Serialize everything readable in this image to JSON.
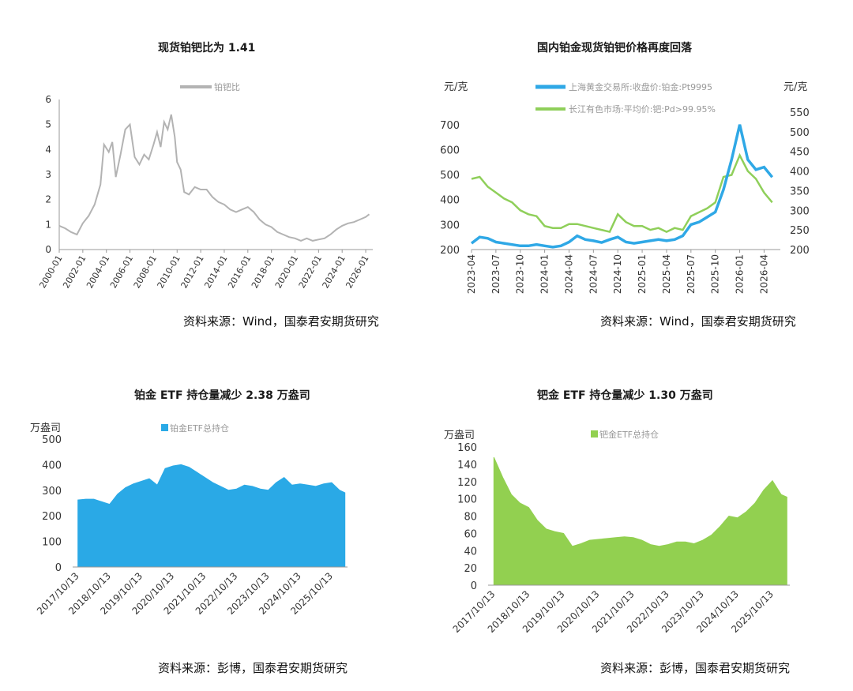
{
  "charts": {
    "pt_pd_ratio": {
      "title": "现货铂钯比为 1.41",
      "source": "资料来源：Wind，国泰君安期货研究",
      "legend": "铂钯比",
      "color": "#b3b3b3"
    },
    "domestic_prices": {
      "title": "国内铂金现货铂钯价格再度回落",
      "source": "资料来源：Wind，国泰君安期货研究",
      "left_unit": "元/克",
      "right_unit": "元/克",
      "legend_pt": "上海黄金交易所:收盘价:铂金:Pt9995",
      "legend_pd": "长江有色市场:平均价:钯:Pd>99.95%",
      "color_pt": "#2fa8e6",
      "color_pd": "#8fcf5a"
    },
    "pt_etf": {
      "title": "铂金 ETF 持仓量减少 2.38 万盎司",
      "source": "资料来源：彭博，国泰君安期货研究",
      "unit": "万盎司",
      "legend": "铂金ETF总持仓",
      "color": "#2aa9e6"
    },
    "pd_etf": {
      "title": "钯金 ETF 持仓量减少 1.30 万盎司",
      "source": "资料来源：彭博，国泰君安期货研究",
      "unit": "万盎司",
      "legend": "钯金ETF总持仓",
      "color": "#92d050"
    }
  },
  "chart_data": [
    {
      "type": "line",
      "title": "现货铂钯比为 1.41",
      "ylim": [
        0,
        6
      ],
      "yticks": [
        0,
        1,
        2,
        3,
        4,
        5,
        6
      ],
      "xlim": [
        2000.0,
        2026.6
      ],
      "xticks": [
        "2000-01",
        "2002-01",
        "2004-01",
        "2006-01",
        "2008-01",
        "2010-01",
        "2012-01",
        "2014-01",
        "2016-01",
        "2018-01",
        "2020-01",
        "2022-01",
        "2024-01",
        "2026-01"
      ],
      "series": [
        {
          "name": "铂钯比",
          "x": [
            2000.0,
            2000.5,
            2001.0,
            2001.5,
            2002.0,
            2002.5,
            2003.0,
            2003.5,
            2003.8,
            2004.2,
            2004.5,
            2004.8,
            2005.2,
            2005.6,
            2006.0,
            2006.4,
            2006.8,
            2007.2,
            2007.6,
            2008.0,
            2008.3,
            2008.6,
            2008.9,
            2009.2,
            2009.5,
            2009.8,
            2010.0,
            2010.3,
            2010.6,
            2011.0,
            2011.5,
            2012.0,
            2012.5,
            2013.0,
            2013.5,
            2014.0,
            2014.5,
            2015.0,
            2015.5,
            2016.0,
            2016.5,
            2017.0,
            2017.5,
            2018.0,
            2018.5,
            2019.0,
            2019.5,
            2020.0,
            2020.5,
            2021.0,
            2021.5,
            2022.0,
            2022.5,
            2023.0,
            2023.5,
            2024.0,
            2024.5,
            2025.0,
            2025.5,
            2026.0,
            2026.3
          ],
          "y": [
            0.95,
            0.85,
            0.7,
            0.6,
            1.05,
            1.35,
            1.8,
            2.6,
            4.2,
            3.9,
            4.3,
            2.9,
            3.8,
            4.8,
            5.0,
            3.7,
            3.4,
            3.8,
            3.6,
            4.2,
            4.7,
            4.1,
            5.1,
            4.8,
            5.4,
            4.5,
            3.5,
            3.2,
            2.3,
            2.2,
            2.5,
            2.4,
            2.4,
            2.1,
            1.9,
            1.8,
            1.6,
            1.5,
            1.6,
            1.7,
            1.5,
            1.2,
            1.0,
            0.9,
            0.7,
            0.6,
            0.5,
            0.45,
            0.35,
            0.45,
            0.35,
            0.4,
            0.45,
            0.6,
            0.8,
            0.95,
            1.05,
            1.1,
            1.2,
            1.3,
            1.41
          ]
        }
      ]
    },
    {
      "type": "line",
      "title": "国内铂金现货铂钯价格再度回落",
      "ylim_left": [
        200,
        750
      ],
      "yticks_left": [
        200,
        300,
        400,
        500,
        600,
        700
      ],
      "ylim_right": [
        200,
        550
      ],
      "yticks_right": [
        200,
        250,
        300,
        350,
        400,
        450,
        500,
        550
      ],
      "xticks": [
        "2023-04",
        "2023-07",
        "2023-10",
        "2024-01",
        "2024-04",
        "2024-07",
        "2024-10",
        "2025-01",
        "2025-04",
        "2025-07",
        "2025-10",
        "2026-01",
        "2026-04"
      ],
      "series": [
        {
          "name": "上海黄金交易所:收盘价:铂金:Pt9995",
          "axis": "left",
          "x": [
            "2023-04",
            "2023-05",
            "2023-06",
            "2023-07",
            "2023-08",
            "2023-09",
            "2023-10",
            "2023-11",
            "2023-12",
            "2024-01",
            "2024-02",
            "2024-03",
            "2024-04",
            "2024-05",
            "2024-06",
            "2024-07",
            "2024-08",
            "2024-09",
            "2024-10",
            "2024-11",
            "2024-12",
            "2025-01",
            "2025-02",
            "2025-03",
            "2025-04",
            "2025-05",
            "2025-06",
            "2025-07",
            "2025-08",
            "2025-09",
            "2025-10",
            "2025-11",
            "2025-12",
            "2026-01",
            "2026-02",
            "2026-03",
            "2026-04",
            "2026-05"
          ],
          "y": [
            225,
            250,
            245,
            230,
            225,
            220,
            215,
            215,
            220,
            215,
            210,
            215,
            230,
            255,
            240,
            235,
            228,
            240,
            250,
            230,
            225,
            230,
            235,
            240,
            235,
            240,
            255,
            300,
            310,
            330,
            350,
            440,
            560,
            700,
            560,
            520,
            530,
            490
          ]
        },
        {
          "name": "长江有色市场:平均价:钯:Pd>99.95%",
          "axis": "right",
          "x": [
            "2023-04",
            "2023-05",
            "2023-06",
            "2023-07",
            "2023-08",
            "2023-09",
            "2023-10",
            "2023-11",
            "2023-12",
            "2024-01",
            "2024-02",
            "2024-03",
            "2024-04",
            "2024-05",
            "2024-06",
            "2024-07",
            "2024-08",
            "2024-09",
            "2024-10",
            "2024-11",
            "2024-12",
            "2025-01",
            "2025-02",
            "2025-03",
            "2025-04",
            "2025-05",
            "2025-06",
            "2025-07",
            "2025-08",
            "2025-09",
            "2025-10",
            "2025-11",
            "2025-12",
            "2026-01",
            "2026-02",
            "2026-03",
            "2026-04",
            "2026-05"
          ],
          "y": [
            380,
            385,
            360,
            345,
            330,
            320,
            300,
            290,
            285,
            260,
            255,
            255,
            265,
            265,
            260,
            255,
            250,
            245,
            290,
            270,
            260,
            260,
            250,
            255,
            245,
            255,
            250,
            285,
            295,
            305,
            320,
            385,
            390,
            440,
            400,
            380,
            345,
            320
          ]
        }
      ]
    },
    {
      "type": "area",
      "title": "铂金 ETF 持仓量减少 2.38 万盎司",
      "ylim": [
        0,
        500
      ],
      "yticks": [
        0,
        100,
        200,
        300,
        400,
        500
      ],
      "xticks": [
        "2017/10/13",
        "2018/10/13",
        "2019/10/13",
        "2020/10/13",
        "2021/10/13",
        "2022/10/13",
        "2023/10/13",
        "2024/10/13",
        "2025/10/13"
      ],
      "series": [
        {
          "name": "铂金ETF总持仓",
          "x": [
            "2017-10",
            "2018-01",
            "2018-04",
            "2018-07",
            "2018-10",
            "2019-01",
            "2019-04",
            "2019-07",
            "2019-10",
            "2020-01",
            "2020-04",
            "2020-07",
            "2020-10",
            "2021-01",
            "2021-04",
            "2021-07",
            "2021-10",
            "2022-01",
            "2022-04",
            "2022-07",
            "2022-10",
            "2023-01",
            "2023-04",
            "2023-07",
            "2023-10",
            "2024-01",
            "2024-04",
            "2024-07",
            "2024-10",
            "2025-01",
            "2025-04",
            "2025-07",
            "2025-10",
            "2026-01",
            "2026-03"
          ],
          "y": [
            262,
            265,
            265,
            255,
            245,
            285,
            310,
            325,
            335,
            345,
            320,
            385,
            395,
            400,
            390,
            370,
            350,
            330,
            315,
            300,
            305,
            320,
            315,
            305,
            300,
            330,
            350,
            320,
            325,
            320,
            315,
            325,
            330,
            300,
            290
          ]
        }
      ]
    },
    {
      "type": "area",
      "title": "钯金 ETF 持仓量减少 1.30 万盎司",
      "ylim": [
        0,
        160
      ],
      "yticks": [
        0,
        20,
        40,
        60,
        80,
        100,
        120,
        140,
        160
      ],
      "xticks": [
        "2017/10/13",
        "2018/10/13",
        "2019/10/13",
        "2020/10/13",
        "2021/10/13",
        "2022/10/13",
        "2023/10/13",
        "2024/10/13",
        "2025/10/13"
      ],
      "series": [
        {
          "name": "钯金ETF总持仓",
          "x": [
            "2017-10",
            "2018-01",
            "2018-04",
            "2018-07",
            "2018-10",
            "2019-01",
            "2019-04",
            "2019-07",
            "2019-10",
            "2020-01",
            "2020-04",
            "2020-07",
            "2020-10",
            "2021-01",
            "2021-04",
            "2021-07",
            "2021-10",
            "2022-01",
            "2022-04",
            "2022-07",
            "2022-10",
            "2023-01",
            "2023-04",
            "2023-07",
            "2023-10",
            "2024-01",
            "2024-04",
            "2024-07",
            "2024-10",
            "2025-01",
            "2025-04",
            "2025-07",
            "2025-10",
            "2026-01",
            "2026-03"
          ],
          "y": [
            148,
            125,
            105,
            95,
            90,
            75,
            65,
            62,
            60,
            45,
            48,
            52,
            53,
            54,
            55,
            56,
            55,
            52,
            47,
            45,
            47,
            50,
            50,
            48,
            52,
            58,
            68,
            80,
            78,
            85,
            95,
            110,
            121,
            105,
            102
          ]
        }
      ]
    }
  ]
}
